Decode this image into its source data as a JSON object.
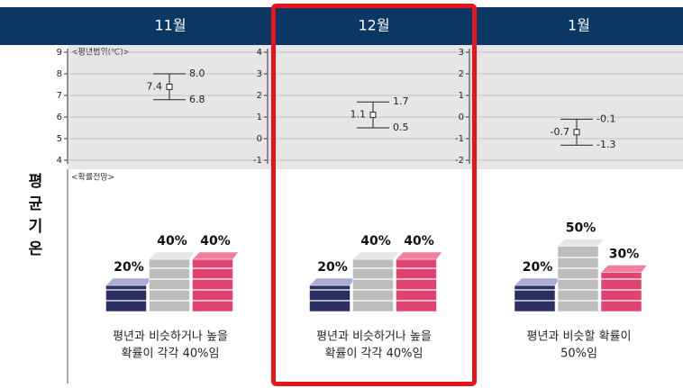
{
  "row_label": "평균기온",
  "columns": [
    "11월",
    "12월",
    "1월"
  ],
  "range_label": "<평년범위(℃)>",
  "prob_label": "<확률전망>",
  "chart_data": [
    {
      "type": "errorbar",
      "ylim": [
        4,
        9
      ],
      "yticks": [
        4,
        5,
        6,
        7,
        8,
        9
      ],
      "grid": true,
      "center": 7.4,
      "high": 8,
      "high_label": "8.0",
      "low": 6.8
    },
    {
      "type": "errorbar",
      "ylim": [
        -1,
        4
      ],
      "yticks": [
        -1,
        0,
        1,
        2,
        3,
        4
      ],
      "grid": true,
      "center": 1.1,
      "high": 1.7,
      "low": 0.5
    },
    {
      "type": "errorbar",
      "ylim": [
        -2,
        3
      ],
      "yticks": [
        -2,
        -1,
        0,
        1,
        2,
        3
      ],
      "grid": true,
      "center": -0.7,
      "high": -0.1,
      "low": -1.3
    }
  ],
  "colors": [
    "#2b2f63",
    "#bdbdbd",
    "#e2426f"
  ],
  "probability": [
    {
      "values": [
        20,
        40,
        40
      ],
      "value_labels": [
        "20%",
        "40%",
        "40%"
      ],
      "caption": [
        "평년과 비슷하거나 높을",
        "확률이 각각 40%임"
      ]
    },
    {
      "values": [
        20,
        40,
        40
      ],
      "value_labels": [
        "20%",
        "40%",
        "40%"
      ],
      "caption": [
        "평년과 비슷하거나 높을",
        "확률이 각각 40%임"
      ]
    },
    {
      "values": [
        20,
        50,
        30
      ],
      "value_labels": [
        "20%",
        "50%",
        "30%"
      ],
      "caption": [
        "평년과 비슷할 확률이",
        "50%임"
      ]
    }
  ]
}
